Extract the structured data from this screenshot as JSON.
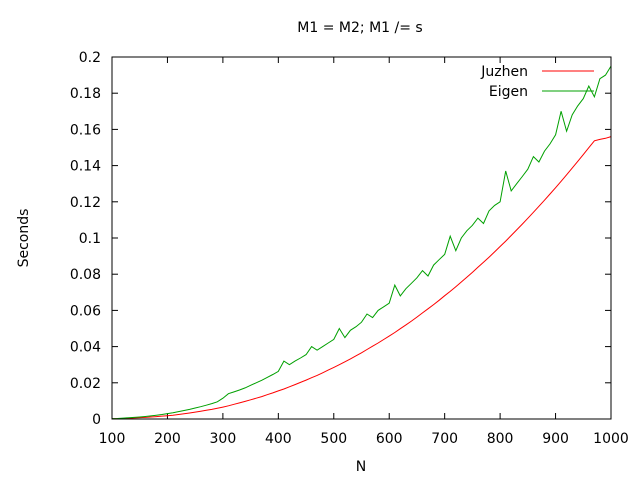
{
  "chart_data": {
    "type": "line",
    "title": "M1 = M2; M1 /= s",
    "xlabel": "N",
    "ylabel": "Seconds",
    "xlim": [
      100,
      1000
    ],
    "ylim": [
      0,
      0.2
    ],
    "x_ticks": [
      "100",
      "200",
      "300",
      "400",
      "500",
      "600",
      "700",
      "800",
      "900",
      "1000"
    ],
    "y_ticks": [
      "0",
      "0.02",
      "0.04",
      "0.06",
      "0.08",
      "0.1",
      "0.12",
      "0.14",
      "0.16",
      "0.18",
      "0.2"
    ],
    "grid": false,
    "legend_position": "top-right",
    "x": [
      100,
      110,
      120,
      130,
      140,
      150,
      160,
      170,
      180,
      190,
      200,
      210,
      220,
      230,
      240,
      250,
      260,
      270,
      280,
      290,
      300,
      310,
      320,
      330,
      340,
      350,
      360,
      370,
      380,
      390,
      400,
      410,
      420,
      430,
      440,
      450,
      460,
      470,
      480,
      490,
      500,
      510,
      520,
      530,
      540,
      550,
      560,
      570,
      580,
      590,
      600,
      610,
      620,
      630,
      640,
      650,
      660,
      670,
      680,
      690,
      700,
      710,
      720,
      730,
      740,
      750,
      760,
      770,
      780,
      790,
      800,
      810,
      820,
      830,
      840,
      850,
      860,
      870,
      880,
      890,
      900,
      910,
      920,
      930,
      940,
      950,
      960,
      970,
      980,
      990,
      1000
    ],
    "series": [
      {
        "name": "Juzhen",
        "color": "#ff0000",
        "values": [
          0.0001,
          0.0002,
          0.0003,
          0.0004,
          0.0006,
          0.0008,
          0.0009,
          0.0011,
          0.0013,
          0.0016,
          0.0018,
          0.0021,
          0.0025,
          0.0029,
          0.0033,
          0.0038,
          0.0043,
          0.0048,
          0.0053,
          0.0059,
          0.0066,
          0.0073,
          0.0081,
          0.0089,
          0.0097,
          0.0106,
          0.0115,
          0.0124,
          0.0134,
          0.0144,
          0.0155,
          0.0166,
          0.0178,
          0.019,
          0.0202,
          0.0215,
          0.0228,
          0.0241,
          0.0255,
          0.027,
          0.0285,
          0.03,
          0.0316,
          0.0332,
          0.0349,
          0.0366,
          0.0384,
          0.0402,
          0.042,
          0.0439,
          0.0458,
          0.0478,
          0.0499,
          0.052,
          0.0541,
          0.0563,
          0.0586,
          0.0609,
          0.0632,
          0.0656,
          0.0681,
          0.0705,
          0.0731,
          0.0757,
          0.0783,
          0.081,
          0.0838,
          0.0866,
          0.0894,
          0.0923,
          0.0953,
          0.0983,
          0.1014,
          0.1045,
          0.1077,
          0.1109,
          0.1142,
          0.1175,
          0.1209,
          0.1243,
          0.1278,
          0.1313,
          0.1349,
          0.1386,
          0.1423,
          0.1461,
          0.1499,
          0.1537,
          0.1545,
          0.1551,
          0.156
        ]
      },
      {
        "name": "Eigen",
        "color": "#00a000",
        "values": [
          0.0002,
          0.0003,
          0.0005,
          0.0007,
          0.0009,
          0.0011,
          0.0014,
          0.0017,
          0.0021,
          0.0025,
          0.003,
          0.0035,
          0.0041,
          0.0047,
          0.0053,
          0.0061,
          0.0068,
          0.0076,
          0.0085,
          0.0095,
          0.0115,
          0.014,
          0.015,
          0.016,
          0.0172,
          0.0186,
          0.02,
          0.0214,
          0.023,
          0.0246,
          0.0263,
          0.032,
          0.03,
          0.032,
          0.0337,
          0.0356,
          0.04,
          0.038,
          0.04,
          0.042,
          0.044,
          0.05,
          0.045,
          0.049,
          0.051,
          0.0535,
          0.058,
          0.056,
          0.06,
          0.062,
          0.064,
          0.074,
          0.068,
          0.072,
          0.075,
          0.078,
          0.082,
          0.079,
          0.085,
          0.088,
          0.091,
          0.101,
          0.093,
          0.1,
          0.104,
          0.107,
          0.111,
          0.108,
          0.115,
          0.118,
          0.12,
          0.137,
          0.126,
          0.13,
          0.134,
          0.138,
          0.145,
          0.142,
          0.148,
          0.152,
          0.157,
          0.17,
          0.159,
          0.168,
          0.173,
          0.177,
          0.184,
          0.178,
          0.188,
          0.19,
          0.195
        ]
      }
    ]
  }
}
